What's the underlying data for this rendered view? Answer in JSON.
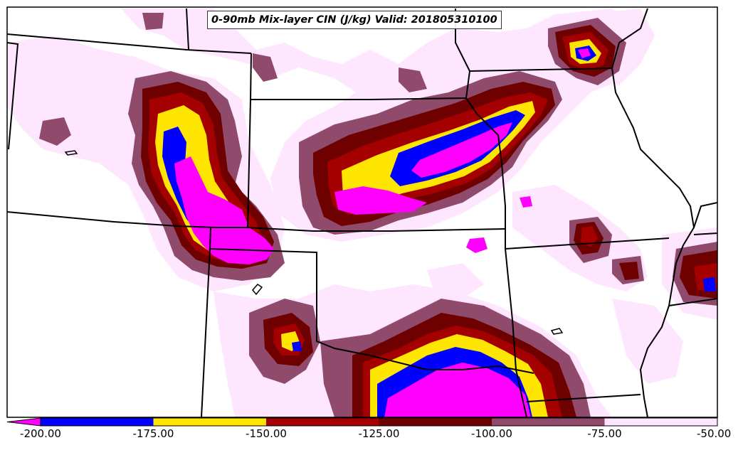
{
  "title": "0-90mb Mix-layer CIN (J/kg) Valid: 201805310100",
  "colorbar": {
    "ticks": [
      "-200.00",
      "-175.00",
      "-150.00",
      "-125.00",
      "-100.00",
      "-75.00",
      "-50.00"
    ],
    "bins": [
      {
        "from": -200,
        "to": -175,
        "color": "#0000ff"
      },
      {
        "from": -175,
        "to": -150,
        "color": "#ffe600"
      },
      {
        "from": -150,
        "to": -125,
        "color": "#a50000"
      },
      {
        "from": -125,
        "to": -100,
        "color": "#6e0000"
      },
      {
        "from": -100,
        "to": -75,
        "color": "#8f4a6c"
      },
      {
        "from": -75,
        "to": -50,
        "color": "#ffe6ff"
      }
    ],
    "under_color": "#ff00ff"
  },
  "colors": {
    "lt_pink": "#ffe6ff",
    "mauve": "#8f4a6c",
    "dark_red": "#6e0000",
    "red": "#a50000",
    "yellow": "#ffe600",
    "blue": "#0000ff",
    "magenta": "#ff00ff",
    "border": "#000000"
  }
}
